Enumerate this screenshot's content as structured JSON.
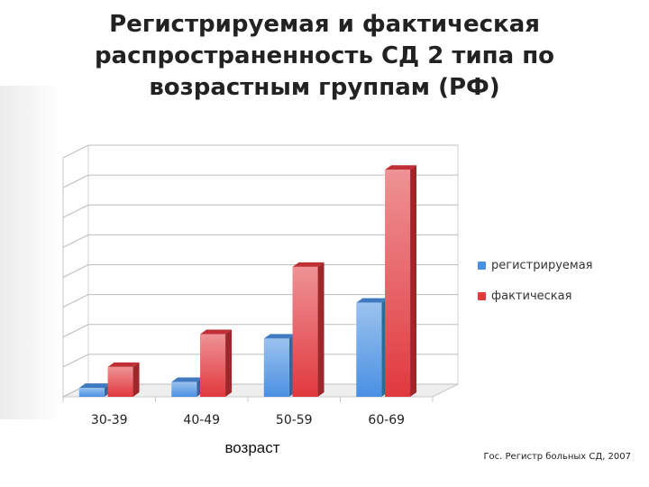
{
  "title_lines": [
    "Регистрируемая и фактическая",
    "распространенность СД 2 типа по",
    "возрастным группам (РФ)"
  ],
  "source_note": "Гос. Регистр больных СД, 2007",
  "colors": {
    "blue": "#4a90e2",
    "red": "#e0393e"
  },
  "chart_data": {
    "type": "bar",
    "title": "Регистрируемая и фактическая распространенность СД 2 типа по возрастным группам (РФ)",
    "xlabel": "возраст",
    "ylabel": "",
    "categories": [
      "30-39",
      "40-49",
      "50-59",
      "60-69"
    ],
    "series": [
      {
        "name": "регистрируемая",
        "values": [
          0.3,
          0.5,
          1.95,
          3.15
        ]
      },
      {
        "name": "фактическая",
        "values": [
          1.0,
          2.1,
          4.35,
          7.6
        ]
      }
    ],
    "ylim": [
      0,
      8
    ],
    "grid": true,
    "legend_position": "right"
  }
}
